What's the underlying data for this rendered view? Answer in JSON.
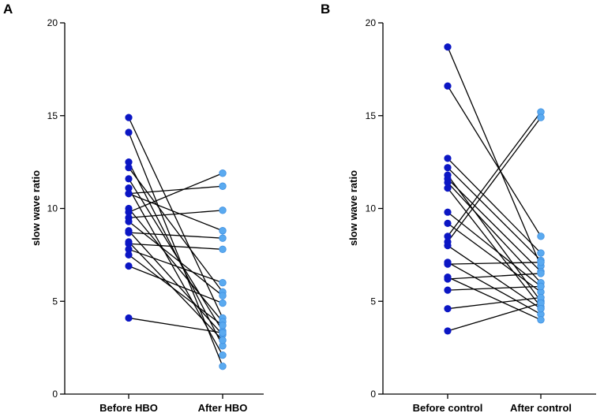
{
  "chart_data": [
    {
      "type": "paired-dot",
      "panel_label": "A",
      "ylabel": "slow wave ratio",
      "ylim": [
        0,
        20
      ],
      "yticks": [
        "0",
        "5",
        "10",
        "15",
        "20"
      ],
      "categories": [
        "Before HBO",
        "After HBO"
      ],
      "colors": {
        "before": "#0b16c4",
        "after": "#5aaaf0",
        "line": "#000000"
      },
      "pairs": [
        [
          14.9,
          4.1
        ],
        [
          14.1,
          1.5
        ],
        [
          12.5,
          2.6
        ],
        [
          12.2,
          5.5
        ],
        [
          11.6,
          3.4
        ],
        [
          11.1,
          2.1
        ],
        [
          10.8,
          11.2
        ],
        [
          10.8,
          8.8
        ],
        [
          10.0,
          3.9
        ],
        [
          9.8,
          11.9
        ],
        [
          9.5,
          9.9
        ],
        [
          9.3,
          5.3
        ],
        [
          8.8,
          3.2
        ],
        [
          8.7,
          8.4
        ],
        [
          8.2,
          2.9
        ],
        [
          7.8,
          6.0
        ],
        [
          7.5,
          3.7
        ],
        [
          6.9,
          4.9
        ],
        [
          4.1,
          3.3
        ],
        [
          8.1,
          7.8
        ]
      ]
    },
    {
      "type": "paired-dot",
      "panel_label": "B",
      "ylabel": "slow wave ratio",
      "ylim": [
        0,
        20
      ],
      "yticks": [
        "0",
        "5",
        "10",
        "15",
        "20"
      ],
      "categories": [
        "Before control",
        "After control"
      ],
      "colors": {
        "before": "#0b16c4",
        "after": "#5aaaf0",
        "line": "#000000"
      },
      "pairs": [
        [
          18.7,
          6.9
        ],
        [
          16.6,
          8.5
        ],
        [
          12.7,
          7.6
        ],
        [
          12.2,
          7.2
        ],
        [
          11.8,
          5.0
        ],
        [
          11.6,
          6.6
        ],
        [
          11.4,
          6.0
        ],
        [
          11.1,
          4.7
        ],
        [
          9.8,
          5.8
        ],
        [
          9.2,
          5.5
        ],
        [
          8.5,
          15.2
        ],
        [
          8.2,
          14.9
        ],
        [
          7.1,
          4.3
        ],
        [
          7.0,
          7.1
        ],
        [
          6.3,
          4.0
        ],
        [
          5.6,
          5.8
        ],
        [
          4.6,
          5.2
        ],
        [
          3.4,
          4.9
        ],
        [
          6.2,
          6.5
        ],
        [
          8.0,
          4.6
        ]
      ]
    }
  ]
}
